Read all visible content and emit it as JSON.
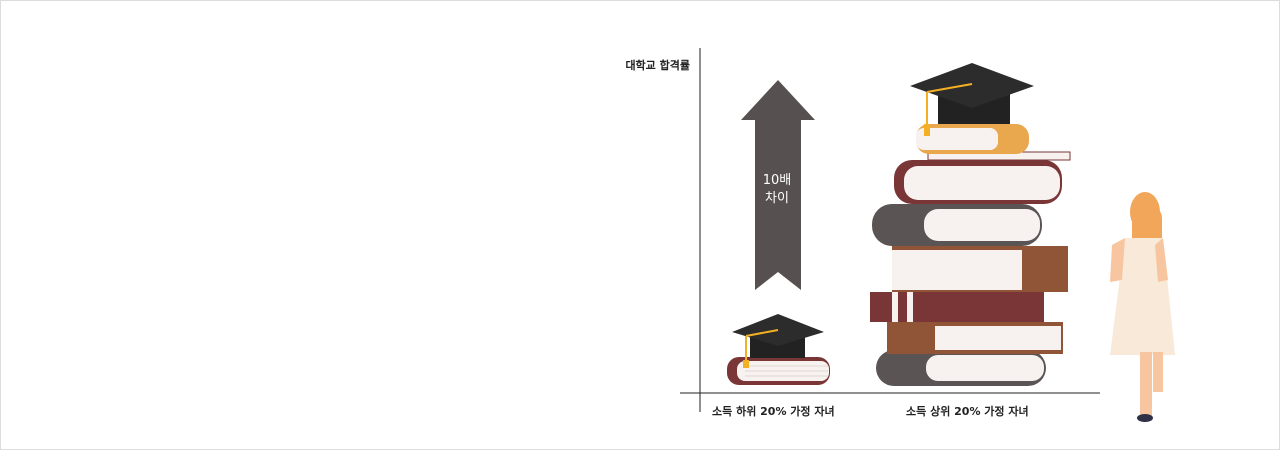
{
  "chart_data": {
    "type": "bar",
    "ylabel": "대학교 합격률",
    "categories": [
      "소득 하위 20% 가정 자녀",
      "소득 상위 20% 가정 자녀"
    ],
    "values": [
      1,
      10
    ],
    "annotation": "10배\n차이"
  },
  "colors": {
    "axis": "#222222",
    "arrow": "#575050",
    "cap": "#222222",
    "tassel": "#f4b024",
    "book_pages": "#f7f2ef",
    "book_red": "#7a3636",
    "book_gray": "#5b5454",
    "book_brown": "#8f5536",
    "book_orange": "#e9a74e",
    "figure_dress": "#f8e9d9",
    "figure_hair": "#f2a65a"
  }
}
